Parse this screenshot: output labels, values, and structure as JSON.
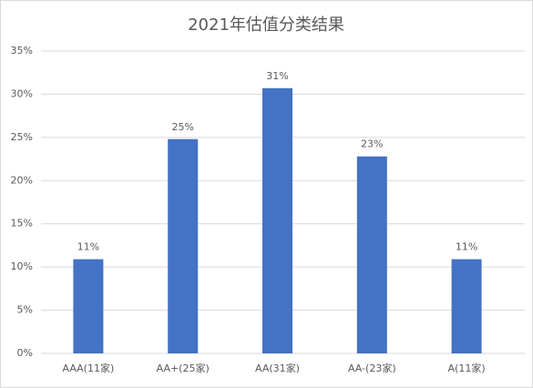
{
  "chart_data": {
    "type": "bar",
    "title": "2021年估值分类结果",
    "categories": [
      "AAA(11家)",
      "AA+(25家)",
      "AA(31家)",
      "AA-(23家)",
      "A(11家)"
    ],
    "values": [
      10.9,
      24.8,
      30.7,
      22.8,
      10.9
    ],
    "value_labels": [
      "11%",
      "25%",
      "31%",
      "23%",
      "11%"
    ],
    "color": "#4472c4",
    "ylim": [
      0,
      35
    ],
    "yticks": [
      {
        "value": 0,
        "label": "0%"
      },
      {
        "value": 5,
        "label": "5%"
      },
      {
        "value": 10,
        "label": "10%"
      },
      {
        "value": 15,
        "label": "15%"
      },
      {
        "value": 20,
        "label": "20%"
      },
      {
        "value": 25,
        "label": "25%"
      },
      {
        "value": 30,
        "label": "30%"
      },
      {
        "value": 35,
        "label": "35%"
      }
    ],
    "grid": true
  }
}
